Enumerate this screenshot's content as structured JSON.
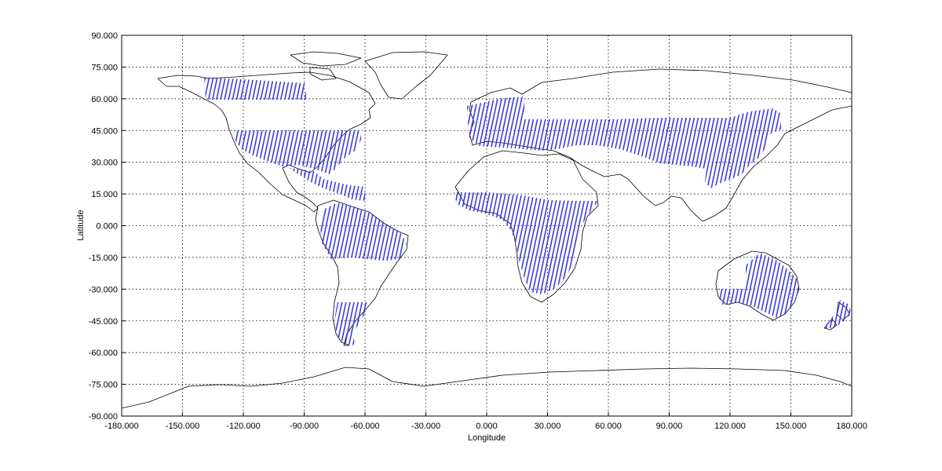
{
  "chart_data": {
    "type": "map",
    "projection": "equirectangular",
    "xlabel": "Longitude",
    "ylabel": "Latitude",
    "xlim": [
      -180,
      180
    ],
    "ylim": [
      -90,
      90
    ],
    "grid": true,
    "x_ticks": [
      -180,
      -150,
      -120,
      -90,
      -60,
      -30,
      0,
      30,
      60,
      90,
      120,
      150,
      180
    ],
    "y_ticks": [
      90,
      75,
      60,
      45,
      30,
      15,
      0,
      -15,
      -30,
      -45,
      -60,
      -75,
      -90
    ],
    "x_tick_labels": [
      "-180.000",
      "-150.000",
      "-120.000",
      "-90.000",
      "-60.000",
      "-30.000",
      "0.000",
      "30.000",
      "60.000",
      "90.000",
      "120.000",
      "150.000",
      "180.000"
    ],
    "y_tick_labels": [
      "90.000",
      "75.000",
      "60.000",
      "45.000",
      "30.000",
      "15.000",
      "0.000",
      "-15.000",
      "-30.000",
      "-45.000",
      "-60.000",
      "-75.000",
      "-90.000"
    ],
    "highlight_color": "#3b3bd6",
    "coastline_color": "#000000",
    "highlighted_regions": [
      {
        "region": "north-canada",
        "lon_range": [
          -137,
          -92
        ],
        "lat_range": [
          60,
          70
        ]
      },
      {
        "region": "united-states",
        "lon_range": [
          -125,
          -67
        ],
        "lat_range": [
          25,
          45
        ]
      },
      {
        "region": "mexico-central-america",
        "lon_range": [
          -105,
          -58
        ],
        "lat_range": [
          10,
          25
        ]
      },
      {
        "region": "south-america",
        "lon_range": [
          -80,
          -35
        ],
        "lat_range": [
          -22,
          11
        ]
      },
      {
        "region": "patagonia",
        "lon_range": [
          -75,
          -62
        ],
        "lat_range": [
          -55,
          -36
        ]
      },
      {
        "region": "europe-asia",
        "lon_range": [
          -10,
          145
        ],
        "lat_range": [
          22,
          60
        ]
      },
      {
        "region": "africa",
        "lon_range": [
          -17,
          55
        ],
        "lat_range": [
          -35,
          16
        ]
      },
      {
        "region": "australia",
        "lon_range": [
          113,
          153
        ],
        "lat_range": [
          -44,
          -12
        ]
      },
      {
        "region": "new-zealand",
        "lon_range": [
          166,
          178
        ],
        "lat_range": [
          -47,
          -34
        ]
      }
    ]
  }
}
